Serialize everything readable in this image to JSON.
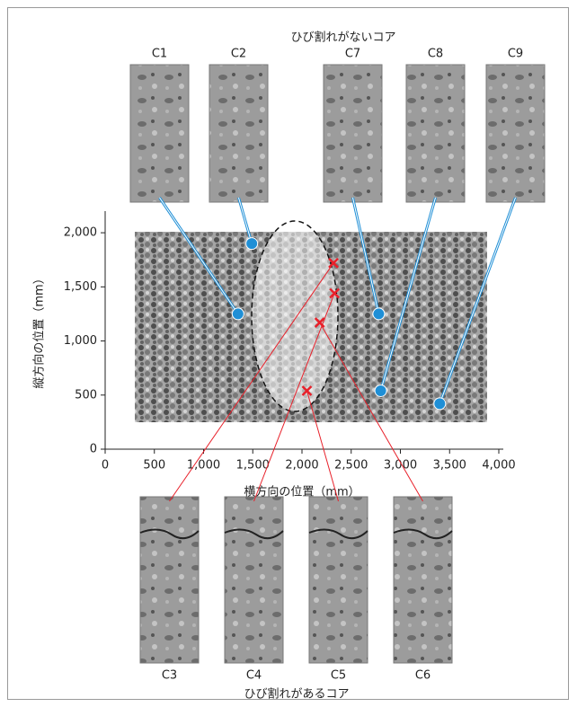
{
  "chart_data": {
    "type": "scatter",
    "top_title": "ひび割れがないコア",
    "bottom_title": "ひび割れがあるコア",
    "xlabel": "横方向の位置（mm）",
    "ylabel": "縦方向の位置（mm）",
    "xlim": [
      0,
      4000
    ],
    "ylim": [
      0,
      2200
    ],
    "xticks": [
      0,
      500,
      {
        "value": 1000,
        "label": "1,000"
      },
      {
        "value": 1500,
        "label": "1,500"
      },
      {
        "value": 2000,
        "label": "2,000"
      },
      {
        "value": 2500,
        "label": "2,500"
      },
      {
        "value": 3000,
        "label": "3,000"
      },
      {
        "value": 3500,
        "label": "3,500"
      },
      {
        "value": 4000,
        "label": "4,000"
      }
    ],
    "yticks": [
      0,
      500,
      {
        "value": 1000,
        "label": "1,000"
      },
      {
        "value": 1500,
        "label": "1,500"
      },
      {
        "value": 2000,
        "label": "2,000"
      }
    ],
    "series": [
      {
        "name": "ひび割れがないコア",
        "color": "#1f8fd6",
        "marker": "circle",
        "labels": [
          "C1",
          "C2",
          "C7",
          "C8",
          "C9"
        ],
        "x": [
          1350,
          1490,
          2780,
          2800,
          3400
        ],
        "values": [
          1250,
          1900,
          1250,
          540,
          420
        ]
      },
      {
        "name": "ひび割れがあるコア",
        "color": "#e8202a",
        "marker": "cross",
        "labels": [
          "C3",
          "C4",
          "C5",
          "C6"
        ],
        "x": [
          2320,
          2330,
          2050,
          2180
        ],
        "values": [
          1720,
          1440,
          540,
          1170
        ]
      }
    ]
  }
}
